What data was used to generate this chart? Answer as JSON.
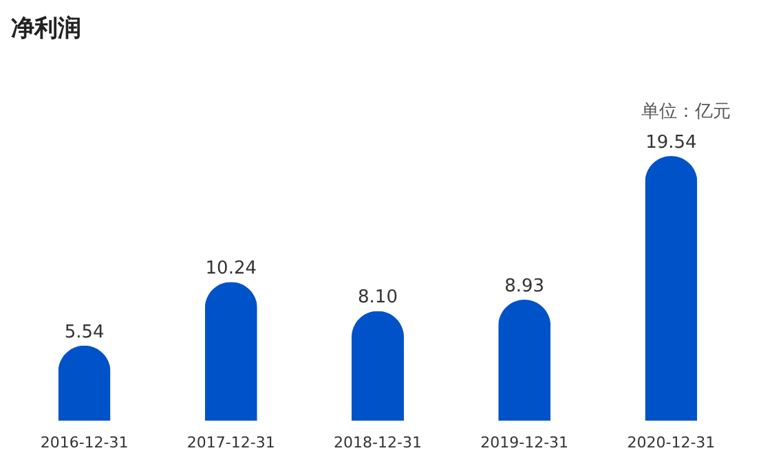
{
  "chart_data": {
    "type": "bar",
    "title": "净利润",
    "annotations": [
      "单位：亿元"
    ],
    "categories": [
      "2016-12-31",
      "2017-12-31",
      "2018-12-31",
      "2019-12-31",
      "2020-12-31"
    ],
    "values": [
      5.54,
      10.24,
      8.1,
      8.93,
      19.54
    ],
    "value_labels": [
      "5.54",
      "10.24",
      "8.10",
      "8.93",
      "19.54"
    ],
    "color": "#0052c8",
    "grid": false
  }
}
